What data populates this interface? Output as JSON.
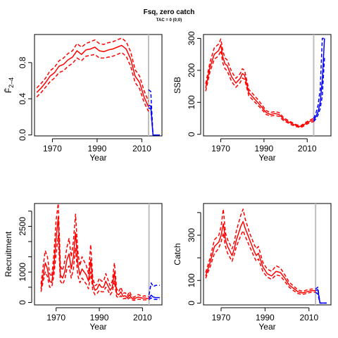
{
  "figure": {
    "title": "Fsq, zero catch",
    "subtitle": "TAC = 0 (0;0)"
  },
  "colors": {
    "history": "#ff0000",
    "projection": "#0000ff",
    "ref_line": "#bebebe",
    "axis": "#000000"
  },
  "chart_data": [
    {
      "id": "fbar",
      "type": "line",
      "xlabel": "Year",
      "ylabel": "F̄",
      "ylabel_subscript": "2–4",
      "xlim": [
        1962,
        2019
      ],
      "ylim": [
        -0.01,
        1.11
      ],
      "xticks": [
        1970,
        1990,
        2010
      ],
      "yticks": [
        0.0,
        0.4,
        0.8
      ],
      "ytick_labels": [
        "0.0",
        "0.4",
        "0.8"
      ],
      "vline_x": 2013,
      "historical": {
        "x": [
          1963,
          1965,
          1967,
          1969,
          1971,
          1973,
          1975,
          1977,
          1979,
          1981,
          1983,
          1985,
          1987,
          1989,
          1991,
          1993,
          1995,
          1997,
          1999,
          2001,
          2003,
          2005,
          2007,
          2009,
          2011,
          2013
        ],
        "median": [
          0.47,
          0.52,
          0.58,
          0.65,
          0.69,
          0.76,
          0.78,
          0.83,
          0.86,
          0.93,
          0.89,
          0.94,
          0.95,
          0.97,
          0.93,
          0.92,
          0.94,
          0.95,
          0.97,
          0.99,
          0.95,
          0.84,
          0.65,
          0.58,
          0.42,
          0.31
        ],
        "lower": [
          0.42,
          0.47,
          0.53,
          0.59,
          0.63,
          0.69,
          0.71,
          0.76,
          0.79,
          0.85,
          0.82,
          0.87,
          0.88,
          0.89,
          0.85,
          0.85,
          0.86,
          0.87,
          0.89,
          0.91,
          0.87,
          0.76,
          0.58,
          0.51,
          0.36,
          0.26
        ],
        "upper": [
          0.52,
          0.57,
          0.63,
          0.71,
          0.75,
          0.82,
          0.85,
          0.9,
          0.93,
          1.01,
          0.97,
          1.01,
          1.03,
          1.05,
          1.01,
          1.0,
          1.02,
          1.03,
          1.05,
          1.07,
          1.03,
          0.92,
          0.72,
          0.65,
          0.49,
          0.37
        ]
      },
      "projection": {
        "x": [
          2013,
          2014,
          2015,
          2016,
          2017,
          2018
        ],
        "median": [
          0.33,
          0.32,
          0,
          0,
          0,
          0
        ],
        "lower": [
          0.3,
          0.29,
          0,
          0,
          0,
          0
        ],
        "upper": [
          0.5,
          0.48,
          0,
          0,
          0,
          0
        ]
      }
    },
    {
      "id": "ssb",
      "type": "line",
      "xlabel": "Year",
      "ylabel": "SSB",
      "xlim": [
        1962,
        2021
      ],
      "ylim": [
        -5,
        312
      ],
      "xticks": [
        1970,
        1990,
        2010
      ],
      "yticks": [
        0,
        100,
        200,
        300
      ],
      "ytick_labels": [
        "0",
        "100",
        "200",
        "300"
      ],
      "vline_x": 2013,
      "historical": {
        "x": [
          1963,
          1965,
          1967,
          1969,
          1970,
          1971,
          1972,
          1973,
          1975,
          1977,
          1979,
          1980,
          1981,
          1983,
          1985,
          1987,
          1989,
          1991,
          1993,
          1995,
          1997,
          1999,
          2001,
          2003,
          2005,
          2007,
          2009,
          2011,
          2013
        ],
        "median": [
          145,
          210,
          250,
          262,
          280,
          240,
          220,
          215,
          180,
          160,
          175,
          190,
          185,
          130,
          115,
          100,
          85,
          68,
          62,
          65,
          62,
          48,
          40,
          33,
          27,
          24,
          32,
          40,
          45
        ],
        "lower": [
          135,
          195,
          235,
          245,
          262,
          222,
          205,
          198,
          165,
          147,
          162,
          176,
          172,
          120,
          106,
          92,
          78,
          62,
          57,
          59,
          56,
          43,
          36,
          29,
          24,
          21,
          28,
          36,
          40
        ],
        "upper": [
          158,
          225,
          270,
          282,
          298,
          260,
          238,
          232,
          196,
          175,
          190,
          205,
          200,
          140,
          125,
          110,
          93,
          74,
          68,
          71,
          68,
          53,
          44,
          37,
          30,
          27,
          36,
          44,
          50
        ]
      },
      "projection": {
        "x": [
          2013,
          2014,
          2015,
          2016,
          2017,
          2018
        ],
        "median": [
          45,
          55,
          70,
          100,
          170,
          300
        ],
        "lower": [
          40,
          48,
          60,
          80,
          120,
          240
        ],
        "upper": [
          50,
          65,
          90,
          140,
          300,
          300
        ]
      }
    },
    {
      "id": "recruitment",
      "type": "line",
      "xlabel": "Year",
      "ylabel": "Recruitment",
      "xlim": [
        1960,
        2019
      ],
      "ylim": [
        -80,
        3250
      ],
      "xticks": [
        1970,
        1990,
        2010
      ],
      "yticks": [
        0,
        500,
        1000,
        1500,
        2000,
        2500,
        3000
      ],
      "ytick_labels": [
        "0",
        "",
        "1000",
        "",
        "",
        "2500",
        ""
      ],
      "vline_x": 2013,
      "historical": {
        "x": [
          1963,
          1964,
          1965,
          1966,
          1967,
          1968,
          1969,
          1970,
          1971,
          1972,
          1973,
          1974,
          1975,
          1976,
          1977,
          1978,
          1979,
          1980,
          1981,
          1982,
          1983,
          1984,
          1985,
          1986,
          1987,
          1988,
          1989,
          1990,
          1991,
          1992,
          1993,
          1994,
          1995,
          1996,
          1997,
          1998,
          1999,
          2000,
          2001,
          2002,
          2003,
          2004,
          2005,
          2006,
          2007,
          2008,
          2009,
          2010,
          2011,
          2012,
          2013
        ],
        "median": [
          450,
          900,
          1300,
          1100,
          700,
          650,
          1200,
          2100,
          2800,
          900,
          800,
          1000,
          1400,
          1600,
          1100,
          1500,
          2300,
          1300,
          900,
          1100,
          1000,
          900,
          700,
          1400,
          600,
          400,
          450,
          600,
          500,
          500,
          700,
          550,
          400,
          500,
          1000,
          300,
          250,
          350,
          200,
          220,
          150,
          250,
          140,
          120,
          150,
          180,
          160,
          140,
          150,
          130,
          140
        ],
        "lower": [
          350,
          700,
          1000,
          850,
          500,
          500,
          900,
          1600,
          2200,
          700,
          600,
          750,
          1100,
          1200,
          800,
          1100,
          1800,
          900,
          650,
          800,
          700,
          600,
          450,
          1000,
          400,
          250,
          300,
          400,
          350,
          350,
          500,
          400,
          250,
          350,
          700,
          200,
          150,
          220,
          120,
          140,
          90,
          160,
          90,
          70,
          90,
          110,
          100,
          80,
          90,
          80,
          90
        ],
        "upper": [
          600,
          1200,
          1700,
          1500,
          950,
          850,
          1600,
          2700,
          3250,
          1200,
          1050,
          1350,
          1800,
          2100,
          1500,
          2000,
          2900,
          1700,
          1200,
          1500,
          1350,
          1200,
          950,
          1900,
          800,
          550,
          600,
          800,
          700,
          700,
          950,
          750,
          550,
          700,
          1300,
          450,
          350,
          500,
          300,
          320,
          220,
          360,
          200,
          170,
          220,
          260,
          230,
          200,
          220,
          190,
          200
        ]
      },
      "projection": {
        "x": [
          2013,
          2014,
          2015,
          2016,
          2017,
          2018
        ],
        "median": [
          140,
          240,
          180,
          160,
          160,
          160
        ],
        "lower": [
          100,
          150,
          110,
          100,
          100,
          100
        ],
        "upper": [
          250,
          640,
          520,
          560,
          560,
          560
        ]
      }
    },
    {
      "id": "catch",
      "type": "line",
      "xlabel": "Year",
      "ylabel": "Catch",
      "xlim": [
        1962,
        2020
      ],
      "ylim": [
        -8,
        440
      ],
      "xticks": [
        1970,
        1990,
        2010
      ],
      "yticks": [
        0,
        100,
        200,
        300,
        400
      ],
      "ytick_labels": [
        "0",
        "100",
        "",
        "300",
        ""
      ],
      "vline_x": 2013,
      "historical": {
        "x": [
          1963,
          1965,
          1967,
          1968,
          1969,
          1970,
          1971,
          1972,
          1973,
          1975,
          1976,
          1977,
          1979,
          1980,
          1981,
          1983,
          1985,
          1986,
          1987,
          1989,
          1991,
          1993,
          1995,
          1997,
          1999,
          2001,
          2003,
          2005,
          2007,
          2009,
          2011,
          2013
        ],
        "median": [
          120,
          180,
          250,
          260,
          270,
          300,
          350,
          280,
          250,
          210,
          240,
          280,
          340,
          360,
          330,
          280,
          230,
          210,
          220,
          160,
          130,
          120,
          140,
          135,
          110,
          80,
          65,
          50,
          45,
          50,
          55,
          55
        ],
        "lower": [
          110,
          160,
          220,
          230,
          245,
          270,
          310,
          250,
          220,
          185,
          215,
          250,
          300,
          320,
          295,
          250,
          205,
          185,
          195,
          140,
          115,
          105,
          125,
          120,
          95,
          70,
          55,
          42,
          38,
          43,
          48,
          48
        ],
        "upper": [
          135,
          200,
          280,
          290,
          300,
          340,
          415,
          310,
          280,
          240,
          270,
          320,
          390,
          415,
          370,
          310,
          260,
          240,
          250,
          180,
          150,
          140,
          165,
          155,
          125,
          92,
          75,
          58,
          52,
          58,
          62,
          62
        ]
      },
      "projection": {
        "x": [
          2013,
          2014,
          2015,
          2016,
          2017,
          2018
        ],
        "median": [
          55,
          60,
          0,
          0,
          0,
          0
        ],
        "lower": [
          48,
          40,
          0,
          0,
          0,
          0
        ],
        "upper": [
          62,
          70,
          0,
          0,
          0,
          0
        ]
      }
    }
  ]
}
